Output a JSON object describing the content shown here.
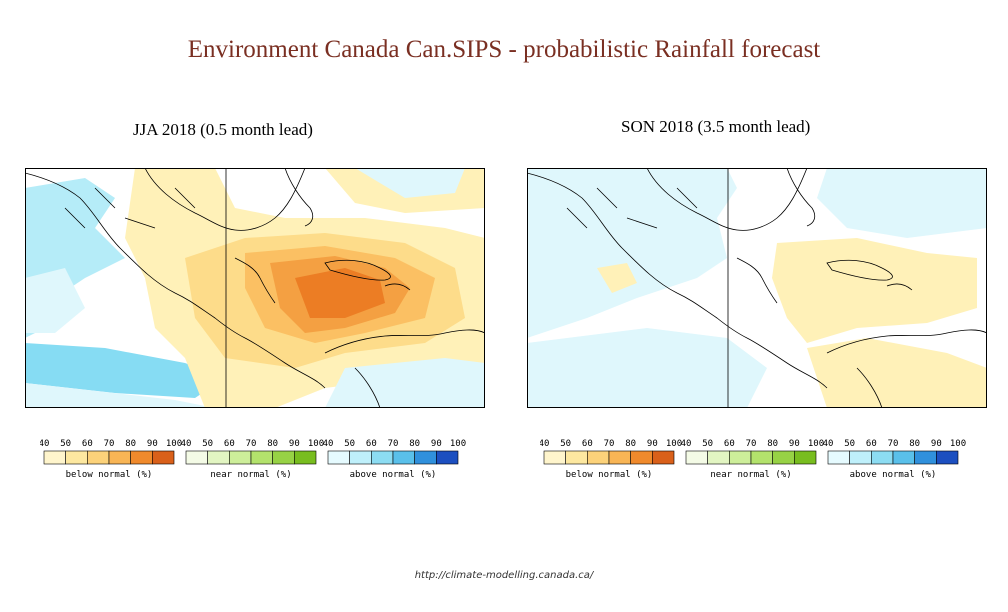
{
  "title": "Environment Canada Can.SIPS - probabilistic  Rainfall forecast",
  "panels": [
    {
      "label": "JJA 2018 (0.5 month lead)"
    },
    {
      "label": "SON 2018 (3.5 month lead)"
    }
  ],
  "legend": {
    "below": {
      "label": "below normal (%)",
      "ticks": [
        "40",
        "50",
        "60",
        "70",
        "80",
        "90",
        "100"
      ],
      "colors": [
        "#fff5cc",
        "#fde8a0",
        "#fcd27a",
        "#f8b555",
        "#f08a2c",
        "#d9601a"
      ]
    },
    "near": {
      "label": "near normal (%)",
      "ticks": [
        "40",
        "50",
        "60",
        "70",
        "80",
        "90",
        "100"
      ],
      "colors": [
        "#f4fbe6",
        "#e2f5c2",
        "#cdee9a",
        "#b3e26c",
        "#97d245",
        "#78bd1f"
      ]
    },
    "above": {
      "label": "above normal (%)",
      "ticks": [
        "40",
        "50",
        "60",
        "70",
        "80",
        "90",
        "100"
      ],
      "colors": [
        "#e6fbff",
        "#bff0fb",
        "#8cdcf2",
        "#5ac0ea",
        "#3090dc",
        "#1c4fc0"
      ]
    }
  },
  "map_colors": {
    "below1": "#fff1b8",
    "below2": "#fddc8a",
    "below3": "#fbc063",
    "below4": "#f4a042",
    "below5": "#ec7d24",
    "above1": "#dff7fc",
    "above2": "#b5ecf8",
    "above3": "#86dcf3",
    "land": "#000000"
  },
  "footer": {
    "url": "http://climate-modelling.canada.ca/"
  }
}
